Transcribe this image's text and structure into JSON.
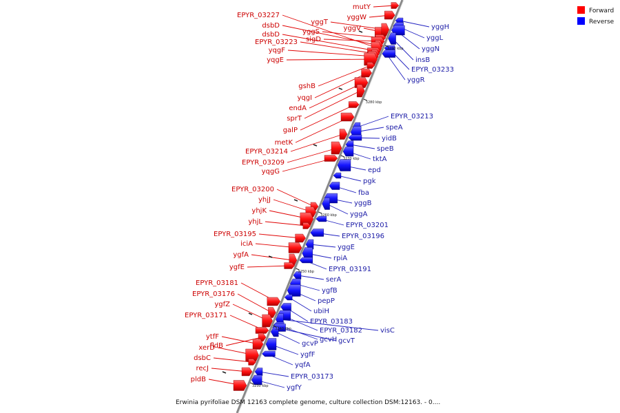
{
  "legend": [
    {
      "label": "Forward",
      "color": "#ff0000"
    },
    {
      "label": "Reverse",
      "color": "#0000ff"
    }
  ],
  "caption": "Erwinia pyrifoliae DSM 12163 complete genome, culture collection DSM:12163. - 0....",
  "ticks": [
    "3290 kbp",
    "3280 kbp",
    "3270 kbp",
    "3260 kbp",
    "3250 kbp",
    "3240 kbp",
    "3230 kbp"
  ],
  "forward_genes": [
    "mutY",
    "yggW",
    "yggV",
    "yggT",
    "yggS",
    "sigD",
    "dsbD",
    "EPYR_03227",
    "dsbD",
    "EPYR_03223",
    "yqgF",
    "yqgE",
    "gshB",
    "yqgI",
    "endA",
    "sprT",
    "galP",
    "metK",
    "EPYR_03214",
    "EPYR_03209",
    "yqgG",
    "EPYR_03200",
    "yhjJ",
    "yhjK",
    "yhjL",
    "EPYR_03195",
    "iciA",
    "ygfA",
    "ygfE",
    "EPYR_03181",
    "EPYR_03176",
    "ygfZ",
    "EPYR_03171",
    "fldB",
    "ytfF",
    "xerD",
    "dsbC",
    "recJ",
    "pldB"
  ],
  "reverse_genes": [
    "yggH",
    "yggL",
    "yggN",
    "insB",
    "EPYR_03233",
    "yggR",
    "EPYR_03213",
    "speA",
    "yidB",
    "speB",
    "tktA",
    "epd",
    "pgk",
    "fba",
    "yggB",
    "yggA",
    "EPYR_03201",
    "EPYR_03196",
    "yggE",
    "rpiA",
    "EPYR_03191",
    "serA",
    "ygfB",
    "pepP",
    "ubiH",
    "EPYR_03183",
    "EPYR_03182",
    "visC",
    "gcvH",
    "gcvT",
    "gcvP",
    "ygfF",
    "yqfA",
    "EPYR_03173",
    "ygfY"
  ]
}
